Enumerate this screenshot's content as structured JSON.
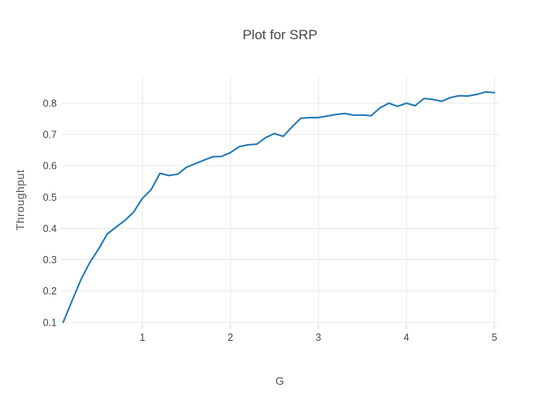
{
  "title": "Plot for SRP",
  "chart_data": {
    "type": "line",
    "title": "Plot for SRP",
    "xlabel": "G",
    "ylabel": "Throughput",
    "legend_position": "none",
    "grid": true,
    "xlim": [
      0.073,
      5.055
    ],
    "ylim": [
      0.092,
      0.892
    ],
    "xticks": [
      {
        "value": 1,
        "label": "1"
      },
      {
        "value": 2,
        "label": "2"
      },
      {
        "value": 3,
        "label": "3"
      },
      {
        "value": 4,
        "label": "4"
      },
      {
        "value": 5,
        "label": "5"
      }
    ],
    "yticks": [
      {
        "value": 0.1,
        "label": "0.1"
      },
      {
        "value": 0.2,
        "label": "0.2"
      },
      {
        "value": 0.3,
        "label": "0.3"
      },
      {
        "value": 0.4,
        "label": "0.4"
      },
      {
        "value": 0.5,
        "label": "0.5"
      },
      {
        "value": 0.6,
        "label": "0.6"
      },
      {
        "value": 0.7,
        "label": "0.7"
      },
      {
        "value": 0.8,
        "label": "0.8"
      }
    ],
    "x": [
      0.1,
      0.2,
      0.3,
      0.4,
      0.5,
      0.6,
      0.7,
      0.8,
      0.9,
      1.0,
      1.1,
      1.2,
      1.3,
      1.4,
      1.5,
      1.6,
      1.7,
      1.8,
      1.9,
      2.0,
      2.1,
      2.2,
      2.3,
      2.4,
      2.5,
      2.6,
      2.7,
      2.8,
      2.9,
      3.0,
      3.1,
      3.2,
      3.3,
      3.4,
      3.5,
      3.6,
      3.7,
      3.8,
      3.9,
      4.0,
      4.1,
      4.2,
      4.3,
      4.4,
      4.5,
      4.6,
      4.7,
      4.8,
      4.9,
      5.0
    ],
    "y": [
      0.1,
      0.168,
      0.235,
      0.29,
      0.333,
      0.382,
      0.404,
      0.425,
      0.452,
      0.496,
      0.524,
      0.576,
      0.569,
      0.573,
      0.595,
      0.607,
      0.618,
      0.629,
      0.63,
      0.642,
      0.661,
      0.667,
      0.669,
      0.69,
      0.703,
      0.694,
      0.724,
      0.752,
      0.754,
      0.754,
      0.759,
      0.764,
      0.767,
      0.762,
      0.762,
      0.76,
      0.785,
      0.8,
      0.79,
      0.8,
      0.792,
      0.815,
      0.812,
      0.806,
      0.818,
      0.824,
      0.823,
      0.828,
      0.836,
      0.834
    ],
    "colors": {
      "line": "#1f77b4",
      "grid": "#e8e8e8",
      "tick_mark": "#cccccc",
      "tick_text": "#444444",
      "title_text": "#444444",
      "axis_title_text": "#555555",
      "background": "#ffffff"
    }
  }
}
